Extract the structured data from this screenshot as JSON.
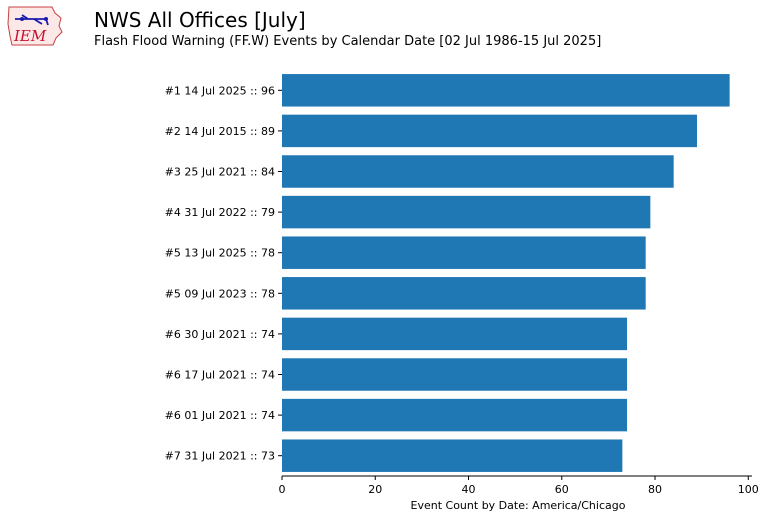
{
  "header": {
    "title": "NWS All Offices [July]",
    "subtitle": "Flash Flood Warning (FF.W) Events by Calendar Date [02 Jul 1986-15 Jul 2025]",
    "logo_text": "IEM"
  },
  "chart_data": {
    "type": "bar",
    "orientation": "horizontal",
    "title": "NWS All Offices [July]",
    "subtitle": "Flash Flood Warning (FF.W) Events by Calendar Date [02 Jul 1986-15 Jul 2025]",
    "xlabel": "Event Count by Date: America/Chicago",
    "ylabel": "",
    "xlim": [
      0,
      100.8
    ],
    "xticks": [
      0,
      20,
      40,
      60,
      80,
      100
    ],
    "grid": false,
    "categories": [
      "#1  14 Jul 2025 :: 96",
      "#2  14 Jul 2015 :: 89",
      "#3  25 Jul 2021 :: 84",
      "#4  31 Jul 2022 :: 79",
      "#5  13 Jul 2025 :: 78",
      "#5  09 Jul 2023 :: 78",
      "#6  30 Jul 2021 :: 74",
      "#6  17 Jul 2021 :: 74",
      "#6  01 Jul 2021 :: 74",
      "#7  31 Jul 2021 :: 73"
    ],
    "values": [
      96,
      89,
      84,
      79,
      78,
      78,
      74,
      74,
      74,
      73
    ],
    "bar_color": "#1f77b4"
  }
}
